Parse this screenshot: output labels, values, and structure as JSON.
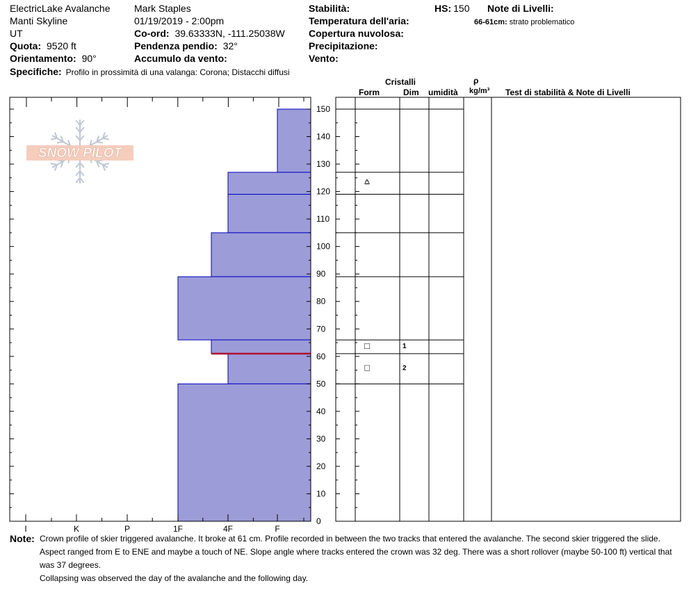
{
  "header": {
    "location": "ElectricLake Avalanche",
    "area": "Manti Skyline",
    "state": "UT",
    "elevation_label": "Quota:",
    "elevation_value": "9520 ft",
    "aspect_label": "Orientamento:",
    "aspect_value": "90°",
    "specifics_label": "Specifiche:",
    "specifics_value": "Profilo in prossimità di una valanga: Corona;  Distacchi diffusi",
    "observer": "Mark Staples",
    "datetime": "01/19/2019 - 2:00pm",
    "coord_label": "Co-ord:",
    "coord_value": "39.63333N, -111.25038W",
    "slope_label": "Pendenza pendio:",
    "slope_value": "32°",
    "wind_loading_label": "Accumulo da vento:",
    "stability_label": "Stabilità:",
    "air_temp_label": "Temperatura dell'aria:",
    "sky_label": "Copertura nuvolosa:",
    "precip_label": "Precipitazione:",
    "wind_label": "Vento:",
    "hs_label": "HS:",
    "hs_value": "150",
    "layer_notes_label": "Note di Livelli:",
    "layer_note_range": "66-61cm:",
    "layer_note_text": "strato problematico"
  },
  "logo": {
    "text": "SNOW PILOT"
  },
  "columns": {
    "cristalli": "Cristalli",
    "form": "Form",
    "dim": "Dim",
    "umidita": "umidità",
    "rho": "ρ",
    "density_unit": "kg/m³",
    "stability_notes": "Test di stabilità & Note di Livelli"
  },
  "chart_data": {
    "type": "bar",
    "title": "",
    "ylabel": "",
    "xlabel": "",
    "ylim": [
      0,
      150
    ],
    "y_ticks": [
      0,
      10,
      20,
      30,
      40,
      50,
      60,
      70,
      80,
      90,
      100,
      110,
      120,
      130,
      140,
      150
    ],
    "x_ticks": [
      "I",
      "K",
      "P",
      "1F",
      "4F",
      "F"
    ],
    "hardness_scale": [
      "I",
      "K",
      "P",
      "1F",
      "4F",
      "F",
      "F-"
    ],
    "layers": [
      {
        "top": 150,
        "bottom": 127,
        "hardness": "F-"
      },
      {
        "top": 127,
        "bottom": 119,
        "hardness": "4F"
      },
      {
        "top": 119,
        "bottom": 105,
        "hardness": "4F"
      },
      {
        "top": 105,
        "bottom": 89,
        "hardness": "4F+"
      },
      {
        "top": 89,
        "bottom": 66,
        "hardness": "1F"
      },
      {
        "top": 66,
        "bottom": 61,
        "hardness": "4F+"
      },
      {
        "top": 61,
        "bottom": 50,
        "hardness": "4F"
      },
      {
        "top": 50,
        "bottom": 0,
        "hardness": "1F"
      }
    ],
    "weak_layer_depth": 61,
    "crystal_forms": [
      {
        "depth": 124,
        "symbol": "⩟"
      },
      {
        "depth": 64,
        "symbol": "□"
      },
      {
        "depth": 56,
        "symbol": "□"
      }
    ],
    "layer_ids": [
      {
        "depth": 64,
        "label": "1"
      },
      {
        "depth": 56,
        "label": "2"
      }
    ],
    "colors": {
      "fill": "#9c9cd8",
      "edge": "#0000c0",
      "weak_layer": "#b01030"
    }
  },
  "notes": {
    "label": "Note:",
    "line1": "Crown profile of skier triggered avalanche. It broke at 61 cm. Profile recorded in between the two tracks that entered the avalanche. The second skier triggered the slide.",
    "line2": "Aspect ranged from E to ENE and maybe a touch of NE. Slope angle where tracks entered the crown was 32 deg. There was a short rollover (maybe 50-100 ft) vertical that",
    "line3": "was 37 degrees.",
    "line4": "Collapsing was observed the day of the avalanche and the following day."
  }
}
